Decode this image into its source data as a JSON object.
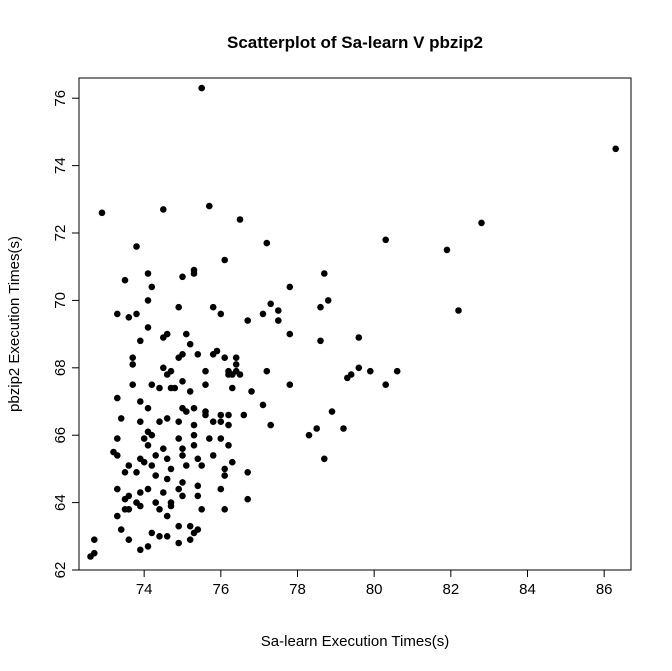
{
  "chart_data": {
    "type": "scatter",
    "title": "Scatterplot of Sa-learn V pbzip2",
    "xlabel": "Sa-learn Execution Times(s)",
    "ylabel": "pbzip2 Execution Times(s)",
    "xlim": [
      72.3,
      86.7
    ],
    "ylim": [
      62.0,
      76.6
    ],
    "xticks": [
      "74",
      "76",
      "78",
      "80",
      "82",
      "84",
      "86"
    ],
    "yticks": [
      "62",
      "64",
      "66",
      "68",
      "70",
      "72",
      "74",
      "76"
    ],
    "grid": false,
    "point_color": "#000000",
    "points": [
      [
        75.5,
        76.3
      ],
      [
        86.3,
        74.5
      ],
      [
        72.9,
        72.6
      ],
      [
        74.5,
        72.7
      ],
      [
        75.7,
        72.8
      ],
      [
        76.5,
        72.4
      ],
      [
        82.8,
        72.3
      ],
      [
        80.3,
        71.8
      ],
      [
        81.9,
        71.5
      ],
      [
        73.8,
        71.6
      ],
      [
        77.2,
        71.7
      ],
      [
        76.1,
        71.2
      ],
      [
        74.1,
        70.8
      ],
      [
        75.3,
        70.8
      ],
      [
        75.3,
        70.9
      ],
      [
        75.0,
        70.7
      ],
      [
        78.7,
        70.8
      ],
      [
        73.5,
        70.6
      ],
      [
        74.2,
        70.4
      ],
      [
        77.8,
        70.4
      ],
      [
        78.8,
        70.0
      ],
      [
        74.1,
        70.0
      ],
      [
        82.2,
        69.7
      ],
      [
        73.8,
        69.6
      ],
      [
        73.3,
        69.6
      ],
      [
        73.6,
        69.5
      ],
      [
        74.1,
        69.2
      ],
      [
        74.9,
        69.8
      ],
      [
        75.8,
        69.8
      ],
      [
        76.0,
        69.6
      ],
      [
        77.3,
        69.9
      ],
      [
        77.1,
        69.6
      ],
      [
        77.5,
        69.7
      ],
      [
        78.6,
        69.8
      ],
      [
        77.5,
        69.4
      ],
      [
        76.7,
        69.4
      ],
      [
        74.6,
        69.0
      ],
      [
        74.5,
        68.9
      ],
      [
        75.1,
        69.0
      ],
      [
        73.9,
        68.8
      ],
      [
        77.8,
        69.0
      ],
      [
        78.6,
        68.8
      ],
      [
        79.6,
        68.9
      ],
      [
        75.2,
        68.7
      ],
      [
        75.4,
        68.4
      ],
      [
        75.0,
        68.4
      ],
      [
        74.9,
        68.3
      ],
      [
        75.8,
        68.4
      ],
      [
        75.9,
        68.5
      ],
      [
        76.1,
        68.3
      ],
      [
        76.4,
        68.3
      ],
      [
        76.4,
        68.1
      ],
      [
        73.7,
        68.3
      ],
      [
        73.7,
        68.1
      ],
      [
        74.5,
        68.0
      ],
      [
        74.7,
        67.9
      ],
      [
        74.6,
        67.8
      ],
      [
        75.6,
        67.9
      ],
      [
        76.2,
        67.9
      ],
      [
        76.2,
        67.8
      ],
      [
        76.3,
        67.8
      ],
      [
        76.4,
        67.9
      ],
      [
        76.5,
        67.8
      ],
      [
        77.2,
        67.9
      ],
      [
        79.4,
        67.8
      ],
      [
        79.6,
        68.0
      ],
      [
        79.9,
        67.9
      ],
      [
        80.6,
        67.9
      ],
      [
        80.3,
        67.5
      ],
      [
        79.3,
        67.7
      ],
      [
        77.8,
        67.5
      ],
      [
        75.0,
        67.6
      ],
      [
        75.6,
        67.5
      ],
      [
        74.2,
        67.5
      ],
      [
        73.7,
        67.5
      ],
      [
        74.4,
        67.4
      ],
      [
        74.7,
        67.4
      ],
      [
        74.8,
        67.4
      ],
      [
        75.2,
        67.3
      ],
      [
        76.3,
        67.4
      ],
      [
        76.8,
        67.3
      ],
      [
        73.3,
        67.1
      ],
      [
        73.9,
        67.0
      ],
      [
        74.1,
        66.8
      ],
      [
        75.0,
        66.8
      ],
      [
        75.3,
        66.8
      ],
      [
        75.1,
        66.7
      ],
      [
        75.6,
        66.7
      ],
      [
        75.6,
        66.6
      ],
      [
        76.0,
        66.6
      ],
      [
        76.0,
        66.4
      ],
      [
        76.2,
        66.6
      ],
      [
        76.2,
        66.3
      ],
      [
        76.6,
        66.6
      ],
      [
        77.1,
        66.9
      ],
      [
        77.3,
        66.3
      ],
      [
        78.9,
        66.7
      ],
      [
        73.4,
        66.5
      ],
      [
        73.9,
        66.4
      ],
      [
        74.4,
        66.4
      ],
      [
        74.6,
        66.5
      ],
      [
        74.9,
        66.4
      ],
      [
        75.3,
        66.3
      ],
      [
        75.8,
        66.4
      ],
      [
        74.1,
        66.1
      ],
      [
        74.2,
        66.0
      ],
      [
        73.3,
        65.9
      ],
      [
        74.0,
        65.9
      ],
      [
        74.9,
        65.9
      ],
      [
        75.3,
        66.0
      ],
      [
        75.7,
        65.9
      ],
      [
        76.0,
        65.9
      ],
      [
        76.2,
        65.7
      ],
      [
        74.1,
        65.7
      ],
      [
        74.5,
        65.6
      ],
      [
        75.0,
        65.6
      ],
      [
        75.3,
        65.7
      ],
      [
        78.3,
        66.0
      ],
      [
        78.5,
        66.2
      ],
      [
        79.2,
        66.2
      ],
      [
        73.2,
        65.5
      ],
      [
        73.3,
        65.4
      ],
      [
        73.9,
        65.3
      ],
      [
        74.3,
        65.4
      ],
      [
        74.6,
        65.3
      ],
      [
        75.0,
        65.4
      ],
      [
        75.4,
        65.3
      ],
      [
        75.8,
        65.4
      ],
      [
        76.3,
        65.2
      ],
      [
        78.7,
        65.3
      ],
      [
        73.6,
        65.1
      ],
      [
        74.0,
        65.2
      ],
      [
        74.2,
        65.1
      ],
      [
        74.7,
        65.0
      ],
      [
        75.1,
        65.1
      ],
      [
        75.5,
        65.1
      ],
      [
        76.1,
        65.0
      ],
      [
        76.7,
        64.9
      ],
      [
        73.5,
        64.9
      ],
      [
        73.8,
        64.9
      ],
      [
        74.3,
        64.8
      ],
      [
        74.6,
        64.7
      ],
      [
        75.0,
        64.6
      ],
      [
        75.4,
        64.5
      ],
      [
        76.1,
        64.8
      ],
      [
        73.3,
        64.4
      ],
      [
        73.6,
        64.2
      ],
      [
        73.9,
        64.3
      ],
      [
        74.1,
        64.4
      ],
      [
        74.5,
        64.3
      ],
      [
        74.9,
        64.4
      ],
      [
        75.4,
        64.2
      ],
      [
        76.0,
        64.4
      ],
      [
        73.5,
        64.1
      ],
      [
        73.8,
        64.0
      ],
      [
        74.3,
        64.0
      ],
      [
        74.7,
        64.0
      ],
      [
        75.0,
        64.2
      ],
      [
        73.5,
        63.8
      ],
      [
        73.6,
        63.8
      ],
      [
        73.9,
        63.9
      ],
      [
        74.4,
        63.8
      ],
      [
        74.7,
        63.9
      ],
      [
        75.5,
        63.8
      ],
      [
        76.1,
        63.8
      ],
      [
        76.7,
        64.1
      ],
      [
        73.3,
        63.6
      ],
      [
        74.6,
        63.6
      ],
      [
        75.2,
        63.3
      ],
      [
        74.9,
        63.3
      ],
      [
        73.4,
        63.2
      ],
      [
        74.2,
        63.1
      ],
      [
        74.6,
        63.0
      ],
      [
        74.4,
        63.0
      ],
      [
        75.3,
        63.1
      ],
      [
        75.4,
        63.2
      ],
      [
        72.7,
        62.9
      ],
      [
        73.6,
        62.9
      ],
      [
        74.1,
        62.7
      ],
      [
        74.9,
        62.8
      ],
      [
        75.2,
        62.9
      ],
      [
        73.9,
        62.6
      ],
      [
        72.7,
        62.5
      ],
      [
        72.6,
        62.4
      ]
    ]
  }
}
